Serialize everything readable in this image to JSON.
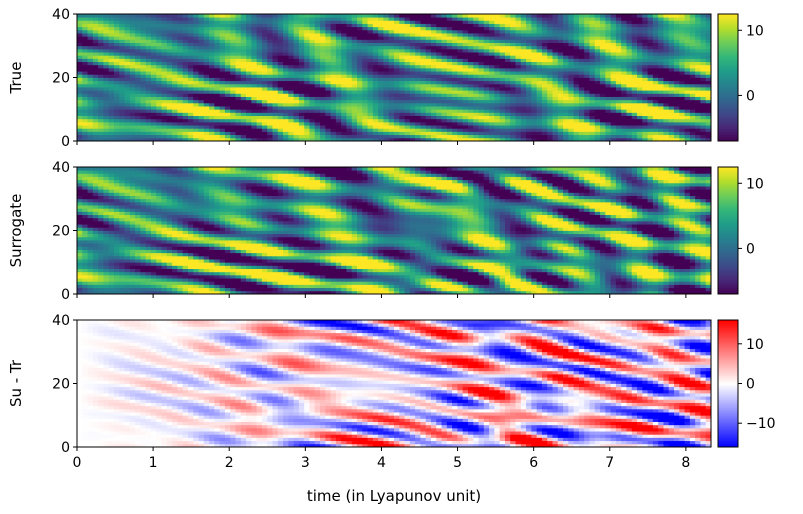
{
  "chart_data": [
    {
      "type": "heatmap",
      "ylabel": "True",
      "ylim": [
        0,
        40
      ],
      "yticks": [
        0,
        20,
        40
      ],
      "xlim": [
        0,
        8.33
      ],
      "colormap": "viridis",
      "colorbar": {
        "range": [
          -7,
          12.5
        ],
        "ticks": [
          0,
          10
        ]
      }
    },
    {
      "type": "heatmap",
      "ylabel": "Surrogate",
      "ylim": [
        0,
        40
      ],
      "yticks": [
        0,
        20,
        40
      ],
      "xlim": [
        0,
        8.33
      ],
      "colormap": "viridis",
      "colorbar": {
        "range": [
          -7,
          12.5
        ],
        "ticks": [
          0,
          10
        ]
      }
    },
    {
      "type": "heatmap",
      "ylabel": "Su - Tr",
      "ylim": [
        0,
        40
      ],
      "yticks": [
        0,
        20,
        40
      ],
      "xlim": [
        0,
        8.33
      ],
      "xticks": [
        0,
        1,
        2,
        3,
        4,
        5,
        6,
        7,
        8
      ],
      "xlabel": "time (in Lyapunov unit)",
      "colormap": "bwr",
      "colorbar": {
        "range": [
          -16,
          16
        ],
        "ticks": [
          -10,
          0,
          10
        ]
      }
    }
  ]
}
